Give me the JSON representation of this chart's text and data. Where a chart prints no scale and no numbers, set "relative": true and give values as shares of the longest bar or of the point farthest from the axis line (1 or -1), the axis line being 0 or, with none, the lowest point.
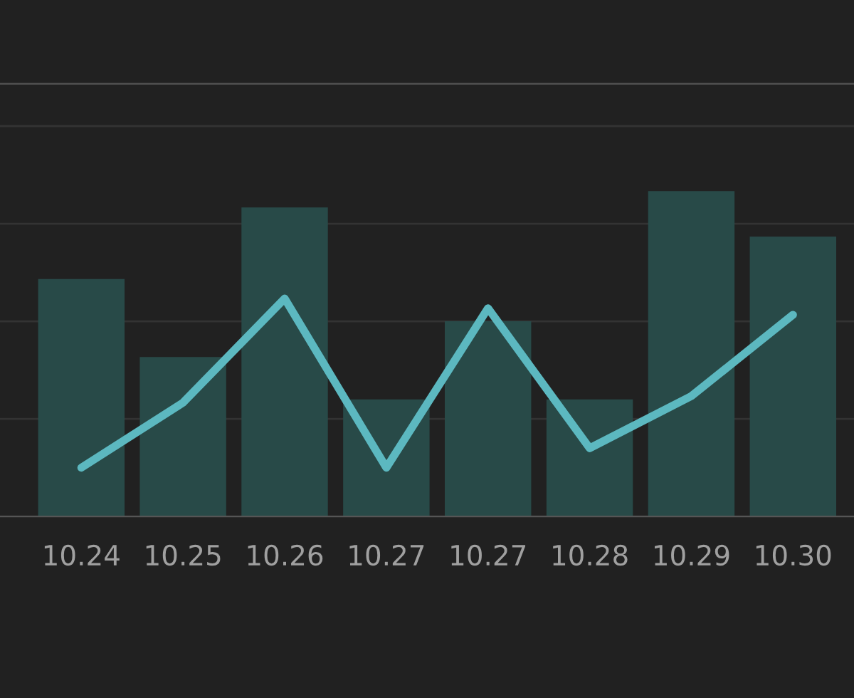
{
  "chart_data": {
    "type": "bar",
    "relative": true,
    "grid": "y",
    "categories": [
      "10.24",
      "10.25",
      "10.26",
      "10.27",
      "10.27",
      "10.28",
      "10.29",
      "10.30"
    ],
    "series": [
      {
        "color": "#284a48",
        "values": [
          0.73,
          0.49,
          0.95,
          0.36,
          0.6,
          0.36,
          1.0,
          0.86
        ]
      },
      {
        "type": "line",
        "color": "#5cb8c0",
        "values": [
          0.15,
          0.35,
          0.67,
          0.15,
          0.64,
          0.21,
          0.37,
          0.62
        ]
      }
    ]
  }
}
